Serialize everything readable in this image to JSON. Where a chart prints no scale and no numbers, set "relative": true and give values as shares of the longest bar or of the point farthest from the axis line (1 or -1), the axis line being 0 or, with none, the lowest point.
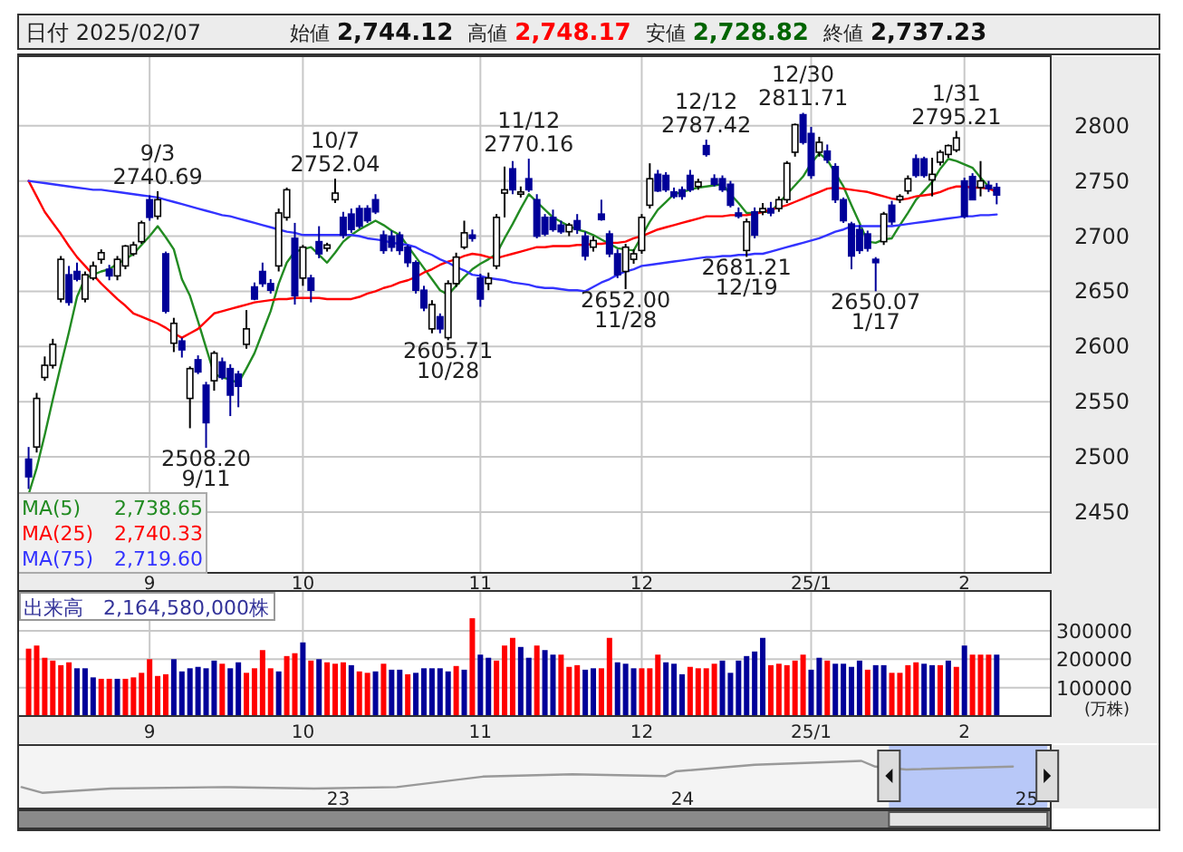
{
  "chart_data": [
    {
      "type": "other",
      "annotations": [
        "日付 2025/02/07",
        "始値",
        "2,744.12",
        "高値",
        "2,748.17",
        "安値",
        "2,728.82",
        "終値",
        "2,737.23"
      ]
    },
    {
      "type": "candlestick",
      "ylim": [
        2395,
        2863
      ],
      "yticks": [
        2450,
        2500,
        2550,
        2600,
        2650,
        2700,
        2750,
        2800
      ],
      "grid": true,
      "legend": "bottom left",
      "categories": [
        null,
        null,
        null,
        null,
        null,
        null,
        null,
        null,
        null,
        null,
        null,
        null,
        null,
        null,
        null,
        "9",
        null,
        null,
        null,
        null,
        null,
        null,
        null,
        null,
        null,
        null,
        null,
        null,
        null,
        null,
        null,
        null,
        null,
        null,
        "10",
        null,
        null,
        null,
        null,
        null,
        null,
        null,
        null,
        null,
        null,
        null,
        null,
        null,
        null,
        null,
        null,
        null,
        null,
        null,
        null,
        null,
        "11",
        null,
        null,
        null,
        null,
        null,
        null,
        null,
        null,
        null,
        null,
        null,
        null,
        null,
        null,
        null,
        null,
        null,
        null,
        null,
        "12",
        null,
        null,
        null,
        null,
        null,
        null,
        null,
        null,
        null,
        null,
        null,
        null,
        null,
        null,
        null,
        null,
        null,
        null,
        null,
        null,
        "25/1",
        null,
        null,
        null,
        null,
        null,
        null,
        null,
        null,
        null,
        null,
        null,
        null,
        null,
        null,
        null,
        null,
        null,
        null,
        "2",
        null,
        null,
        null,
        null
      ],
      "ohlc": [
        [
          2498,
          2509,
          2471,
          2482
        ],
        [
          2509,
          2558,
          2504,
          2553
        ],
        [
          2572,
          2591,
          2569,
          2583
        ],
        [
          2583,
          2607,
          2580,
          2602
        ],
        [
          2643,
          2682,
          2640,
          2679
        ],
        [
          2665,
          2673,
          2637,
          2640
        ],
        [
          2668,
          2676,
          2659,
          2661
        ],
        [
          2643,
          2668,
          2640,
          2665
        ],
        [
          2662,
          2677,
          2660,
          2673
        ],
        [
          2679,
          2688,
          2675,
          2685
        ],
        [
          2670,
          2674,
          2660,
          2664
        ],
        [
          2664,
          2682,
          2660,
          2679
        ],
        [
          2673,
          2692,
          2670,
          2691
        ],
        [
          2684,
          2695,
          2682,
          2692
        ],
        [
          2695,
          2714,
          2693,
          2712
        ],
        [
          2733,
          2737,
          2714,
          2717
        ],
        [
          2718,
          2740.69,
          2715,
          2733
        ],
        [
          2684,
          2686,
          2630,
          2632
        ],
        [
          2603,
          2626,
          2595,
          2621
        ],
        [
          2605,
          2608,
          2590,
          2597
        ],
        [
          2553,
          2582,
          2526,
          2580
        ],
        [
          2588,
          2592,
          2575,
          2577
        ],
        [
          2565,
          2568,
          2508.2,
          2531
        ],
        [
          2569,
          2596,
          2560,
          2594
        ],
        [
          2586,
          2590,
          2570,
          2572
        ],
        [
          2580,
          2584,
          2537,
          2556
        ],
        [
          2575,
          2578,
          2545,
          2564
        ],
        [
          2602,
          2633,
          2598,
          2616
        ],
        [
          2654,
          2658,
          2642,
          2643
        ],
        [
          2668,
          2676,
          2654,
          2657
        ],
        [
          2657,
          2661,
          2648,
          2651
        ],
        [
          2673,
          2725,
          2668,
          2721
        ],
        [
          2717,
          2744,
          2714,
          2742
        ],
        [
          2698,
          2712,
          2638,
          2646
        ],
        [
          2662,
          2692,
          2655,
          2690
        ],
        [
          2662,
          2665,
          2640,
          2651
        ],
        [
          2695,
          2709,
          2680,
          2684
        ],
        [
          2689,
          2694,
          2686,
          2692
        ],
        [
          2733,
          2752.04,
          2730,
          2739
        ],
        [
          2717,
          2722,
          2698,
          2701
        ],
        [
          2720,
          2725,
          2703,
          2706
        ],
        [
          2725,
          2728,
          2707,
          2709
        ],
        [
          2725,
          2728,
          2712,
          2714
        ],
        [
          2733,
          2738,
          2720,
          2722
        ],
        [
          2701,
          2705,
          2684,
          2687
        ],
        [
          2700,
          2705,
          2686,
          2690
        ],
        [
          2701,
          2704,
          2683,
          2687
        ],
        [
          2690,
          2692,
          2672,
          2676
        ],
        [
          2676,
          2678,
          2648,
          2651
        ],
        [
          2651,
          2655,
          2632,
          2635
        ],
        [
          2616,
          2642,
          2612,
          2638
        ],
        [
          2627,
          2630,
          2612,
          2616
        ],
        [
          2608,
          2660,
          2605.71,
          2657
        ],
        [
          2657,
          2685,
          2654,
          2681
        ],
        [
          2690,
          2714,
          2688,
          2703
        ],
        [
          2701,
          2706,
          2695,
          2698
        ],
        [
          2662,
          2666,
          2636,
          2643
        ],
        [
          2657,
          2667,
          2651,
          2662
        ],
        [
          2673,
          2720,
          2670,
          2717
        ],
        [
          2739,
          2763,
          2717,
          2742
        ],
        [
          2761,
          2768,
          2738,
          2742
        ],
        [
          2738,
          2745,
          2735,
          2740
        ],
        [
          2752,
          2770.16,
          2740,
          2742
        ],
        [
          2733,
          2738,
          2698,
          2700
        ],
        [
          2717,
          2720,
          2700,
          2702
        ],
        [
          2717,
          2724,
          2704,
          2706
        ],
        [
          2710,
          2714,
          2702,
          2704
        ],
        [
          2704,
          2712,
          2700,
          2710
        ],
        [
          2714,
          2720,
          2702,
          2706
        ],
        [
          2700,
          2704,
          2678,
          2682
        ],
        [
          2690,
          2700,
          2686,
          2696
        ],
        [
          2720,
          2733,
          2714,
          2715
        ],
        [
          2702,
          2705,
          2681,
          2684
        ],
        [
          2684,
          2688,
          2662,
          2665
        ],
        [
          2668,
          2693,
          2652.0,
          2690
        ],
        [
          2679,
          2688,
          2675,
          2684
        ],
        [
          2687,
          2720,
          2684,
          2717
        ],
        [
          2728,
          2766,
          2725,
          2752
        ],
        [
          2756,
          2760,
          2740,
          2741
        ],
        [
          2755,
          2758,
          2740,
          2742
        ],
        [
          2740,
          2744,
          2734,
          2736
        ],
        [
          2742,
          2745,
          2733,
          2736
        ],
        [
          2755,
          2760,
          2740,
          2742
        ],
        [
          2745,
          2752,
          2742,
          2749
        ],
        [
          2782,
          2787.42,
          2772,
          2774
        ],
        [
          2752,
          2756,
          2745,
          2747
        ],
        [
          2752,
          2755,
          2740,
          2742
        ],
        [
          2747,
          2750,
          2726,
          2728
        ],
        [
          2721,
          2726,
          2716,
          2718
        ],
        [
          2687,
          2716,
          2681.21,
          2713
        ],
        [
          2722,
          2726,
          2698,
          2701
        ],
        [
          2722,
          2730,
          2719,
          2725
        ],
        [
          2725,
          2731,
          2718,
          2721
        ],
        [
          2725,
          2736,
          2722,
          2733
        ],
        [
          2733,
          2768,
          2730,
          2766
        ],
        [
          2776,
          2802,
          2772,
          2801
        ],
        [
          2810,
          2811.71,
          2783,
          2785
        ],
        [
          2793,
          2799,
          2752,
          2755
        ],
        [
          2776,
          2790,
          2772,
          2785
        ],
        [
          2777,
          2783,
          2766,
          2769
        ],
        [
          2763,
          2766,
          2730,
          2733
        ],
        [
          2733,
          2735,
          2712,
          2714
        ],
        [
          2711,
          2713,
          2670,
          2682
        ],
        [
          2706,
          2710,
          2684,
          2687
        ],
        [
          2702,
          2705,
          2686,
          2689
        ],
        [
          2679,
          2681,
          2650.07,
          2676
        ],
        [
          2695,
          2722,
          2692,
          2720
        ],
        [
          2728,
          2732,
          2710,
          2713
        ],
        [
          2733,
          2738,
          2730,
          2736
        ],
        [
          2741,
          2755,
          2738,
          2752
        ],
        [
          2770,
          2774,
          2753,
          2755
        ],
        [
          2770,
          2772,
          2753,
          2755
        ],
        [
          2751,
          2771,
          2736,
          2756
        ],
        [
          2767,
          2778,
          2764,
          2776
        ],
        [
          2774,
          2783,
          2771,
          2782
        ],
        [
          2778,
          2795.21,
          2776,
          2789
        ],
        [
          2750,
          2753,
          2716,
          2718
        ],
        [
          2754,
          2757,
          2733,
          2733
        ],
        [
          2744,
          2768,
          2736,
          2750
        ],
        [
          2746,
          2750,
          2740,
          2743
        ],
        [
          2744.12,
          2748.17,
          2728.82,
          2737.23
        ]
      ],
      "series": [
        {
          "type": "line",
          "name": "MA(5)",
          "color": "#228b22",
          "values": [
            2466,
            2490,
            2520,
            2552,
            2583,
            2613,
            2645,
            2662,
            2665,
            2668,
            2670,
            2675,
            2679,
            2684,
            2692,
            2700,
            2709,
            2699,
            2688,
            2661,
            2646,
            2623,
            2599,
            2575,
            2572,
            2570,
            2567,
            2580,
            2594,
            2613,
            2632,
            2657,
            2676,
            2686,
            2688,
            2690,
            2683,
            2676,
            2685,
            2695,
            2701,
            2706,
            2710,
            2714,
            2710,
            2705,
            2701,
            2691,
            2681,
            2671,
            2661,
            2651,
            2647,
            2655,
            2663,
            2670,
            2675,
            2679,
            2684,
            2698,
            2711,
            2725,
            2738,
            2731,
            2724,
            2717,
            2713,
            2709,
            2706,
            2704,
            2701,
            2697,
            2693,
            2689,
            2688,
            2687,
            2700,
            2713,
            2724,
            2731,
            2738,
            2740,
            2742,
            2744,
            2745,
            2746,
            2747,
            2738,
            2730,
            2721,
            2721,
            2722,
            2722,
            2730,
            2738,
            2746,
            2754,
            2766,
            2775,
            2769,
            2757,
            2745,
            2728,
            2712,
            2695,
            2694,
            2697,
            2698,
            2710,
            2721,
            2733,
            2741,
            2749,
            2761,
            2770,
            2768,
            2765,
            2762,
            2753,
            2745,
            2738.65
          ]
        },
        {
          "type": "line",
          "name": "MA(25)",
          "color": "#ff0000",
          "values": [
            2750,
            2736,
            2722,
            2712,
            2702,
            2691,
            2681,
            2673,
            2665,
            2657,
            2650,
            2643,
            2637,
            2630,
            2627,
            2624,
            2621,
            2617,
            2612,
            2608,
            2612,
            2616,
            2623,
            2630,
            2632,
            2634,
            2636,
            2638,
            2640,
            2641,
            2642,
            2643,
            2643,
            2644,
            2644,
            2644,
            2644,
            2643,
            2643,
            2643,
            2643,
            2645,
            2648,
            2650,
            2653,
            2655,
            2658,
            2660,
            2663,
            2667,
            2670,
            2674,
            2677,
            2679,
            2682,
            2684,
            2683,
            2681,
            2680,
            2682,
            2684,
            2686,
            2688,
            2690,
            2690,
            2691,
            2691,
            2691,
            2692,
            2692,
            2693,
            2693,
            2694,
            2694,
            2695,
            2698,
            2700,
            2703,
            2706,
            2708,
            2710,
            2712,
            2714,
            2716,
            2718,
            2718,
            2718,
            2719,
            2719,
            2719,
            2720,
            2722,
            2724,
            2726,
            2728,
            2731,
            2734,
            2737,
            2740,
            2743,
            2744,
            2743,
            2742,
            2741,
            2740,
            2738,
            2736,
            2734,
            2733,
            2734,
            2736,
            2737,
            2738,
            2740,
            2743,
            2745,
            2745,
            2744,
            2744,
            2743,
            2740.33
          ]
        },
        {
          "type": "line",
          "name": "MA(75)",
          "color": "#3333ff",
          "values": [
            2750,
            2749,
            2748,
            2747,
            2746,
            2745,
            2744,
            2743,
            2742,
            2742,
            2741,
            2740,
            2739,
            2738,
            2737,
            2736,
            2735,
            2733,
            2731,
            2729,
            2727,
            2725,
            2723,
            2721,
            2719,
            2718,
            2716,
            2714,
            2712,
            2710,
            2708,
            2706,
            2704,
            2703,
            2701,
            2701,
            2701,
            2701,
            2701,
            2701,
            2701,
            2700,
            2698,
            2697,
            2696,
            2694,
            2693,
            2692,
            2690,
            2686,
            2683,
            2679,
            2676,
            2672,
            2669,
            2665,
            2664,
            2662,
            2661,
            2660,
            2658,
            2657,
            2656,
            2654,
            2653,
            2653,
            2652,
            2651,
            2651,
            2650,
            2654,
            2658,
            2661,
            2665,
            2668,
            2670,
            2673,
            2674,
            2675,
            2676,
            2677,
            2678,
            2679,
            2680,
            2681,
            2681,
            2682,
            2682,
            2683,
            2683,
            2684,
            2684,
            2686,
            2688,
            2690,
            2692,
            2694,
            2696,
            2698,
            2701,
            2704,
            2706,
            2709,
            2709,
            2709,
            2709,
            2709,
            2709,
            2710,
            2711,
            2712,
            2713,
            2714,
            2715,
            2716,
            2717,
            2718,
            2718,
            2719,
            2719,
            2719.6
          ]
        }
      ],
      "annotations": [
        "2,738.65",
        "2,740.33",
        "2,719.60",
        {
          "text": "9/3",
          "y": 2740.69
        },
        {
          "text": "2740.69",
          "y": 2740.69
        },
        {
          "text": "10/7",
          "y": 2752.04
        },
        {
          "text": "2752.04",
          "y": 2752.04
        },
        {
          "text": "11/12",
          "y": 2770.16
        },
        {
          "text": "2770.16",
          "y": 2770.16
        },
        {
          "text": "12/12",
          "y": 2787.42
        },
        {
          "text": "2787.42",
          "y": 2787.42
        },
        {
          "text": "12/30",
          "y": 2811.71
        },
        {
          "text": "2811.71",
          "y": 2811.71
        },
        {
          "text": "1/31",
          "y": 2795.21
        },
        {
          "text": "2795.21",
          "y": 2795.21
        },
        {
          "text": "2508.20",
          "y": 2508.2
        },
        {
          "text": "9/11",
          "y": 2508.2
        },
        {
          "text": "2605.71",
          "y": 2605.71
        },
        {
          "text": "10/28",
          "y": 2605.71
        },
        {
          "text": "2652.00",
          "y": 2652.0
        },
        {
          "text": "11/28",
          "y": 2652.0
        },
        {
          "text": "2681.21",
          "y": 2681.21
        },
        {
          "text": "12/19",
          "y": 2681.21
        },
        {
          "text": "2650.07",
          "y": 2650.07
        },
        {
          "text": "1/17",
          "y": 2650.07
        }
      ]
    },
    {
      "type": "bar",
      "title": "出来高　2,164,580,000株",
      "ylabel": "(万株)",
      "ylim": [
        0,
        440000
      ],
      "yticks": [
        100000,
        200000,
        300000
      ],
      "grid": true,
      "categories": [
        null,
        null,
        null,
        null,
        null,
        null,
        null,
        null,
        null,
        null,
        null,
        null,
        null,
        null,
        null,
        "9",
        null,
        null,
        null,
        null,
        null,
        null,
        null,
        null,
        null,
        null,
        null,
        null,
        null,
        null,
        null,
        null,
        null,
        null,
        "10",
        null,
        null,
        null,
        null,
        null,
        null,
        null,
        null,
        null,
        null,
        null,
        null,
        null,
        null,
        null,
        null,
        null,
        null,
        null,
        null,
        null,
        "11",
        null,
        null,
        null,
        null,
        null,
        null,
        null,
        null,
        null,
        null,
        null,
        null,
        null,
        null,
        null,
        null,
        null,
        null,
        null,
        "12",
        null,
        null,
        null,
        null,
        null,
        null,
        null,
        null,
        null,
        null,
        null,
        null,
        null,
        null,
        null,
        null,
        null,
        null,
        null,
        null,
        "25/1",
        null,
        null,
        null,
        null,
        null,
        null,
        null,
        null,
        null,
        null,
        null,
        null,
        null,
        null,
        null,
        null,
        null,
        null,
        "2",
        null,
        null,
        null,
        null
      ],
      "values": [
        237000,
        248000,
        205000,
        195000,
        179000,
        189000,
        168000,
        168000,
        136000,
        131000,
        131000,
        131000,
        131000,
        136000,
        152000,
        200000,
        141000,
        147000,
        200000,
        157000,
        168000,
        173000,
        168000,
        195000,
        184000,
        168000,
        189000,
        152000,
        168000,
        232000,
        168000,
        157000,
        211000,
        221000,
        259000,
        195000,
        200000,
        189000,
        184000,
        189000,
        179000,
        157000,
        152000,
        157000,
        184000,
        163000,
        163000,
        147000,
        152000,
        168000,
        168000,
        168000,
        157000,
        176000,
        163000,
        344000,
        216000,
        205000,
        195000,
        248000,
        275000,
        243000,
        205000,
        248000,
        232000,
        216000,
        216000,
        173000,
        179000,
        163000,
        168000,
        168000,
        275000,
        189000,
        184000,
        168000,
        168000,
        168000,
        216000,
        189000,
        184000,
        147000,
        173000,
        168000,
        168000,
        184000,
        195000,
        152000,
        195000,
        211000,
        227000,
        275000,
        179000,
        184000,
        179000,
        195000,
        216000,
        163000,
        205000,
        195000,
        184000,
        184000,
        173000,
        195000,
        163000,
        179000,
        179000,
        152000,
        152000,
        179000,
        189000,
        184000,
        179000,
        179000,
        195000,
        173000,
        248000,
        216000,
        216000,
        216000,
        216000
      ],
      "colors": [
        "#ff0000",
        "#ff0000",
        "#ff0000",
        "#ff0000",
        "#ff0000",
        "#ff0000",
        "#000099",
        "#000099",
        "#000099",
        "#ff0000",
        "#ff0000",
        "#000099",
        "#ff0000",
        "#ff0000",
        "#ff0000",
        "#ff0000",
        "#ff0000",
        "#ff0000",
        "#000099",
        "#000099",
        "#000099",
        "#000099",
        "#000099",
        "#000099",
        "#ff0000",
        "#000099",
        "#000099",
        "#ff0000",
        "#ff0000",
        "#ff0000",
        "#ff0000",
        "#000099",
        "#ff0000",
        "#ff0000",
        "#000099",
        "#ff0000",
        "#000099",
        "#ff0000",
        "#ff0000",
        "#ff0000",
        "#000099",
        "#ff0000",
        "#ff0000",
        "#000099",
        "#ff0000",
        "#000099",
        "#000099",
        "#ff0000",
        "#000099",
        "#000099",
        "#000099",
        "#000099",
        "#000099",
        "#ff0000",
        "#000099",
        "#ff0000",
        "#000099",
        "#000099",
        "#ff0000",
        "#ff0000",
        "#ff0000",
        "#000099",
        "#000099",
        "#ff0000",
        "#000099",
        "#000099",
        "#ff0000",
        "#ff0000",
        "#ff0000",
        "#000099",
        "#000099",
        "#ff0000",
        "#ff0000",
        "#000099",
        "#000099",
        "#000099",
        "#ff0000",
        "#ff0000",
        "#ff0000",
        "#000099",
        "#000099",
        "#000099",
        "#ff0000",
        "#ff0000",
        "#ff0000",
        "#ff0000",
        "#000099",
        "#000099",
        "#000099",
        "#000099",
        "#000099",
        "#000099",
        "#ff0000",
        "#ff0000",
        "#ff0000",
        "#ff0000",
        "#ff0000",
        "#000099",
        "#000099",
        "#ff0000",
        "#000099",
        "#000099",
        "#000099",
        "#000099",
        "#ff0000",
        "#000099",
        "#000099",
        "#ff0000",
        "#ff0000",
        "#ff0000",
        "#ff0000",
        "#000099",
        "#000099",
        "#ff0000",
        "#000099",
        "#ff0000",
        "#000099",
        "#ff0000",
        "#ff0000",
        "#ff0000",
        "#000099"
      ]
    },
    {
      "type": "line",
      "relative": true,
      "xlim": [
        2022.07,
        2025.07
      ],
      "xticks": [
        {
          "value": 2023,
          "label": "23"
        },
        {
          "value": 2024,
          "label": "24"
        },
        {
          "value": 2025,
          "label": "25"
        }
      ],
      "bands": [
        {
          "axis": "x",
          "from": 2024.6,
          "to": 2025.06,
          "color": "#b8c8f8"
        }
      ],
      "series": [
        {
          "color": "#999999",
          "x": [
            2022.08,
            2022.14,
            2022.34,
            2022.67,
            2022.93,
            2023.17,
            2023.42,
            2023.68,
            2023.95,
            2023.98,
            2024.21,
            2024.52,
            2024.56,
            2024.65,
            2024.96
          ],
          "values": [
            0.45,
            0.33,
            0.42,
            0.45,
            0.42,
            0.45,
            0.67,
            0.72,
            0.68,
            0.78,
            0.92,
            1,
            0.88,
            0.82,
            0.88
          ]
        }
      ]
    }
  ]
}
